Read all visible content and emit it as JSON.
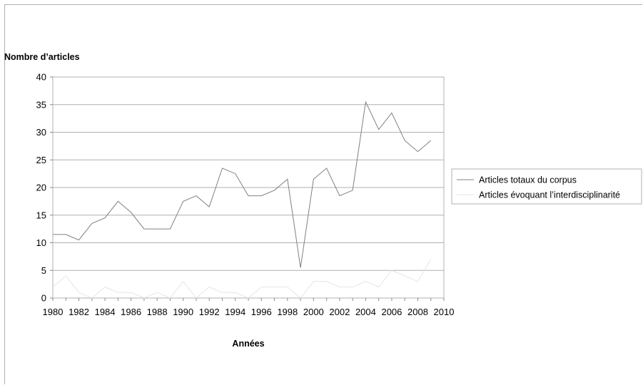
{
  "chart_data": {
    "type": "line",
    "ylabel": "Nombre d’articles",
    "xlabel": "Années",
    "xlim": [
      1980,
      2010
    ],
    "ylim": [
      0,
      40
    ],
    "yticks": [
      "0",
      "5",
      "10",
      "15",
      "20",
      "25",
      "30",
      "35",
      "40"
    ],
    "xticks": [
      "1980",
      "1982",
      "1984",
      "1986",
      "1988",
      "1990",
      "1992",
      "1994",
      "1996",
      "1998",
      "2000",
      "2002",
      "2004",
      "2006",
      "2008",
      "2010"
    ],
    "grid": true,
    "legend_position": "right",
    "x": [
      1980,
      1981,
      1982,
      1983,
      1984,
      1985,
      1986,
      1987,
      1988,
      1989,
      1990,
      1991,
      1992,
      1993,
      1994,
      1995,
      1996,
      1997,
      1998,
      1999,
      2000,
      2001,
      2002,
      2003,
      2004,
      2005,
      2006,
      2007,
      2008,
      2009
    ],
    "series": [
      {
        "name": "Articles totaux du corpus",
        "color": "#808080",
        "values": [
          11.5,
          11.5,
          10.5,
          13.5,
          14.5,
          17.5,
          15.5,
          12.5,
          12.5,
          12.5,
          17.5,
          18.5,
          16.5,
          23.5,
          22.5,
          18.5,
          18.5,
          19.5,
          21.5,
          5.5,
          21.5,
          23.5,
          18.5,
          19.5,
          35.5,
          30.5,
          33.5,
          28.5,
          26.5,
          28.5
        ]
      },
      {
        "name": "Articles évoquant l’interdisciplinarité",
        "color": "#e6e6e6",
        "values": [
          2,
          4,
          1,
          0,
          2,
          1,
          1,
          0,
          1,
          0,
          3,
          0,
          2,
          1,
          1,
          0,
          2,
          2,
          2,
          0,
          3,
          3,
          2,
          2,
          3,
          2,
          5,
          4,
          3,
          7
        ]
      }
    ]
  }
}
